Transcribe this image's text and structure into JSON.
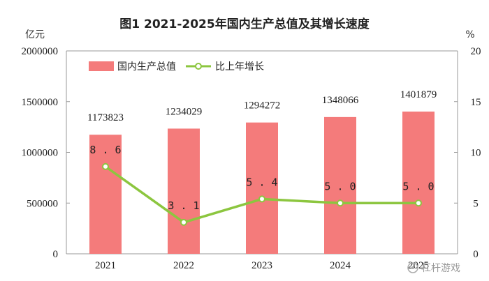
{
  "chart_data": {
    "type": "bar",
    "title": "图1   2021-2025年国内生产总值及其增长速度",
    "categories": [
      "2021",
      "2022",
      "2023",
      "2024",
      "2025"
    ],
    "series": [
      {
        "name": "国内生产总值",
        "type": "bar",
        "axis": "left",
        "values": [
          1173823,
          1234029,
          1294272,
          1348066,
          1401879
        ],
        "color": "#f47b7b"
      },
      {
        "name": "比上年增长",
        "type": "line",
        "axis": "right",
        "values": [
          8.6,
          3.1,
          5.4,
          5.0,
          5.0
        ],
        "labels": [
          "8.6",
          "3.1",
          "5.4",
          "5.0",
          "5.0"
        ],
        "color": "#8cc63f"
      }
    ],
    "ylabel_left": "亿元",
    "ylabel_right": "%",
    "ylim_left": [
      0,
      2000000
    ],
    "ylim_right": [
      0,
      20
    ],
    "yticks_left": [
      "0",
      "500000",
      "1000000",
      "1500000",
      "2000000"
    ],
    "yticks_right": [
      "0",
      "5",
      "10",
      "15",
      "20"
    ],
    "grid": false,
    "legend_position": "top-left"
  },
  "watermark": "杠杆游戏"
}
